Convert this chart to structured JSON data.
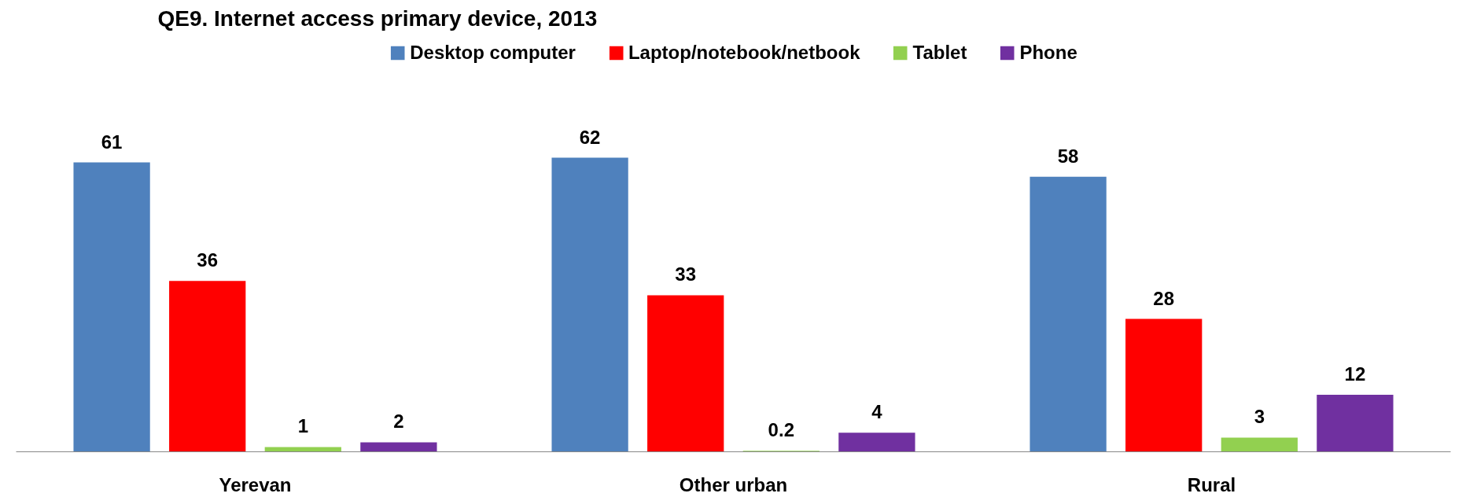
{
  "chart_data": {
    "type": "bar",
    "title": "QE9. Internet access primary device, 2013",
    "categories": [
      "Yerevan",
      "Other urban",
      "Rural"
    ],
    "series": [
      {
        "name": "Desktop computer",
        "color": "#4f81bd",
        "values": [
          61,
          62,
          58
        ]
      },
      {
        "name": "Laptop/notebook/netbook",
        "color": "#ff0000",
        "values": [
          36,
          33,
          28
        ]
      },
      {
        "name": "Tablet",
        "color": "#92d050",
        "values": [
          1,
          0.2,
          3
        ]
      },
      {
        "name": "Phone",
        "color": "#7030a0",
        "values": [
          2,
          4,
          12
        ]
      }
    ],
    "data_labels": true,
    "legend": "top",
    "grid": false
  }
}
